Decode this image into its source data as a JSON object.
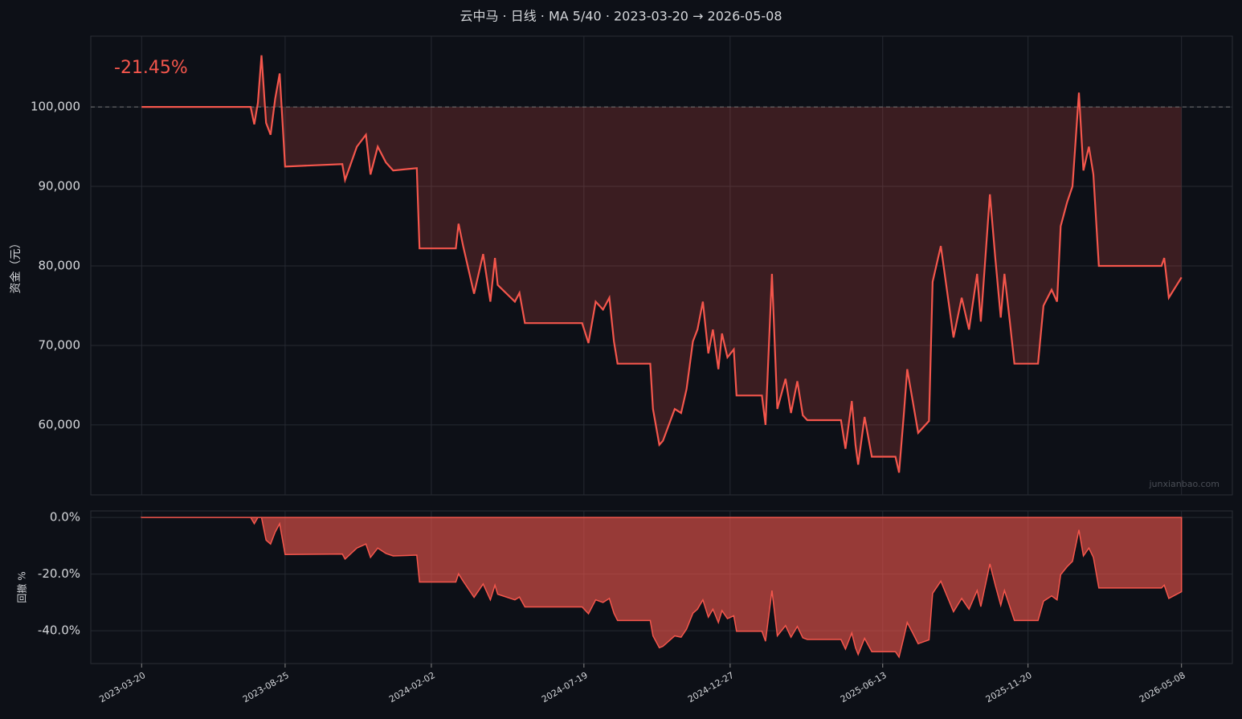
{
  "chart_data": [
    {
      "type": "line",
      "title": "云中马 · 日线 · MA 5/40 · 2023-03-20 → 2026-05-08",
      "annotation": "-21.45%",
      "watermark": "junxianbao.com",
      "y_label": "资金（元）",
      "color": "#f4564c",
      "reference_line": 100000,
      "xlim": [
        "2023-01-23",
        "2026-07-03"
      ],
      "xticks": [
        "2023-03-20",
        "2023-08-25",
        "2024-02-02",
        "2024-07-19",
        "2024-12-27",
        "2025-06-13",
        "2025-11-20",
        "2026-05-08"
      ],
      "ylim": [
        51200,
        108900
      ],
      "yticks": [
        {
          "value": 60000,
          "label": "60,000"
        },
        {
          "value": 70000,
          "label": "70,000"
        },
        {
          "value": 80000,
          "label": "80,000"
        },
        {
          "value": 90000,
          "label": "90,000"
        },
        {
          "value": 100000,
          "label": "100,000"
        }
      ],
      "grid": true,
      "x": [
        "2023-03-20",
        "2023-07-18",
        "2023-07-22",
        "2023-07-26",
        "2023-07-30",
        "2023-08-04",
        "2023-08-09",
        "2023-08-14",
        "2023-08-19",
        "2023-08-25",
        "2023-10-27",
        "2023-10-30",
        "2023-11-12",
        "2023-11-22",
        "2023-11-27",
        "2023-12-05",
        "2023-12-14",
        "2023-12-22",
        "2024-01-17",
        "2024-01-20",
        "2024-02-29",
        "2024-03-03",
        "2024-03-08",
        "2024-03-20",
        "2024-03-30",
        "2024-04-07",
        "2024-04-12",
        "2024-04-15",
        "2024-05-04",
        "2024-05-09",
        "2024-05-15",
        "2024-07-17",
        "2024-07-24",
        "2024-08-01",
        "2024-08-09",
        "2024-08-16",
        "2024-08-21",
        "2024-08-25",
        "2024-09-30",
        "2024-10-03",
        "2024-10-10",
        "2024-10-14",
        "2024-10-27",
        "2024-11-03",
        "2024-11-09",
        "2024-11-16",
        "2024-11-21",
        "2024-11-27",
        "2024-12-03",
        "2024-12-08",
        "2024-12-14",
        "2024-12-18",
        "2024-12-24",
        "2024-12-31",
        "2025-01-03",
        "2025-01-31",
        "2025-02-04",
        "2025-02-11",
        "2025-02-17",
        "2025-02-26",
        "2025-03-04",
        "2025-03-11",
        "2025-03-17",
        "2025-03-22",
        "2025-04-28",
        "2025-05-03",
        "2025-05-10",
        "2025-05-14",
        "2025-05-17",
        "2025-05-24",
        "2025-06-01",
        "2025-06-27",
        "2025-07-01",
        "2025-07-06",
        "2025-07-10",
        "2025-07-16",
        "2025-07-22",
        "2025-08-03",
        "2025-08-07",
        "2025-08-16",
        "2025-08-30",
        "2025-09-08",
        "2025-09-16",
        "2025-09-25",
        "2025-09-29",
        "2025-10-09",
        "2025-10-15",
        "2025-10-21",
        "2025-10-25",
        "2025-10-31",
        "2025-11-05",
        "2025-12-01",
        "2025-12-07",
        "2025-12-16",
        "2025-12-22",
        "2025-12-26",
        "2026-01-02",
        "2026-01-08",
        "2026-01-15",
        "2026-01-20",
        "2026-01-26",
        "2026-01-31",
        "2026-02-06",
        "2026-04-16",
        "2026-04-19",
        "2026-04-24",
        "2026-05-08"
      ],
      "values": [
        100000,
        100000,
        97800,
        100500,
        106500,
        98000,
        96500,
        101000,
        104200,
        92500,
        92800,
        90800,
        95000,
        96500,
        91500,
        95000,
        93000,
        92000,
        92300,
        82200,
        82200,
        85300,
        82500,
        76500,
        81500,
        75500,
        81000,
        77600,
        75500,
        76600,
        72800,
        72800,
        70300,
        75500,
        74500,
        76000,
        70500,
        67700,
        67700,
        62000,
        57500,
        58000,
        62000,
        61500,
        64500,
        70500,
        72000,
        75500,
        69000,
        72000,
        67000,
        71500,
        68500,
        69500,
        63700,
        63700,
        60000,
        79000,
        62000,
        65800,
        61500,
        65500,
        61200,
        60600,
        60600,
        57000,
        63000,
        57500,
        55000,
        61000,
        56000,
        56000,
        54000,
        61000,
        67000,
        63000,
        59000,
        60500,
        78000,
        82500,
        71000,
        76000,
        72000,
        79000,
        73000,
        89000,
        81000,
        73500,
        79000,
        73000,
        67700,
        67700,
        75000,
        77000,
        75500,
        85000,
        88000,
        90000,
        101800,
        92000,
        95000,
        91500,
        80000,
        80000,
        81000,
        76000,
        78550
      ]
    },
    {
      "type": "area",
      "y_label": "回撤 %",
      "color": "#f4564c",
      "xlim": [
        "2023-01-23",
        "2026-07-03"
      ],
      "xticks": [
        "2023-03-20",
        "2023-08-25",
        "2024-02-02",
        "2024-07-19",
        "2024-12-27",
        "2025-06-13",
        "2025-11-20",
        "2026-05-08"
      ],
      "ylim": [
        -51.6,
        2.3
      ],
      "yticks": [
        {
          "value": 0,
          "label": "0.0%"
        },
        {
          "value": -20,
          "label": "-20.0%"
        },
        {
          "value": -40,
          "label": "-40.0%"
        }
      ],
      "grid": true,
      "x": [
        "2023-03-20",
        "2023-07-18",
        "2023-07-22",
        "2023-07-26",
        "2023-07-30",
        "2023-08-04",
        "2023-08-09",
        "2023-08-14",
        "2023-08-19",
        "2023-08-25",
        "2023-10-27",
        "2023-10-30",
        "2023-11-12",
        "2023-11-22",
        "2023-11-27",
        "2023-12-05",
        "2023-12-14",
        "2023-12-22",
        "2024-01-17",
        "2024-01-20",
        "2024-02-29",
        "2024-03-03",
        "2024-03-08",
        "2024-03-20",
        "2024-03-30",
        "2024-04-07",
        "2024-04-12",
        "2024-04-15",
        "2024-05-04",
        "2024-05-09",
        "2024-05-15",
        "2024-07-17",
        "2024-07-24",
        "2024-08-01",
        "2024-08-09",
        "2024-08-16",
        "2024-08-21",
        "2024-08-25",
        "2024-09-30",
        "2024-10-03",
        "2024-10-10",
        "2024-10-14",
        "2024-10-27",
        "2024-11-03",
        "2024-11-09",
        "2024-11-16",
        "2024-11-21",
        "2024-11-27",
        "2024-12-03",
        "2024-12-08",
        "2024-12-14",
        "2024-12-18",
        "2024-12-24",
        "2024-12-31",
        "2025-01-03",
        "2025-01-31",
        "2025-02-04",
        "2025-02-11",
        "2025-02-17",
        "2025-02-26",
        "2025-03-04",
        "2025-03-11",
        "2025-03-17",
        "2025-03-22",
        "2025-04-28",
        "2025-05-03",
        "2025-05-10",
        "2025-05-14",
        "2025-05-17",
        "2025-05-24",
        "2025-06-01",
        "2025-06-27",
        "2025-07-01",
        "2025-07-06",
        "2025-07-10",
        "2025-07-16",
        "2025-07-22",
        "2025-08-03",
        "2025-08-07",
        "2025-08-16",
        "2025-08-30",
        "2025-09-08",
        "2025-09-16",
        "2025-09-25",
        "2025-09-29",
        "2025-10-09",
        "2025-10-15",
        "2025-10-21",
        "2025-10-25",
        "2025-10-31",
        "2025-11-05",
        "2025-12-01",
        "2025-12-07",
        "2025-12-16",
        "2025-12-22",
        "2025-12-26",
        "2026-01-02",
        "2026-01-08",
        "2026-01-15",
        "2026-01-20",
        "2026-01-26",
        "2026-01-31",
        "2026-02-06",
        "2026-04-16",
        "2026-04-19",
        "2026-04-24",
        "2026-05-08"
      ],
      "values": [
        0,
        0,
        -2.2,
        0,
        0,
        -8.0,
        -9.4,
        -5.2,
        -2.2,
        -13.1,
        -12.9,
        -14.7,
        -10.8,
        -9.4,
        -14.1,
        -10.8,
        -12.7,
        -13.6,
        -13.3,
        -22.8,
        -22.8,
        -19.9,
        -22.5,
        -28.2,
        -23.5,
        -29.1,
        -23.9,
        -27.1,
        -29.1,
        -28.1,
        -31.6,
        -31.6,
        -34.0,
        -29.1,
        -30.0,
        -28.6,
        -33.8,
        -36.4,
        -36.4,
        -41.8,
        -46.0,
        -45.5,
        -41.8,
        -42.3,
        -39.4,
        -33.8,
        -32.4,
        -29.1,
        -35.2,
        -32.4,
        -37.1,
        -32.9,
        -35.7,
        -34.7,
        -40.2,
        -40.2,
        -43.7,
        -25.8,
        -41.8,
        -38.2,
        -42.3,
        -38.5,
        -42.5,
        -43.1,
        -43.1,
        -46.5,
        -40.8,
        -46.0,
        -48.4,
        -42.7,
        -47.4,
        -47.4,
        -49.3,
        -42.7,
        -37.1,
        -40.8,
        -44.6,
        -43.2,
        -26.8,
        -22.5,
        -33.3,
        -28.6,
        -32.4,
        -25.8,
        -31.5,
        -16.4,
        -23.9,
        -31.0,
        -25.8,
        -31.5,
        -36.4,
        -36.4,
        -29.6,
        -27.7,
        -29.1,
        -20.2,
        -17.4,
        -15.5,
        -4.4,
        -13.6,
        -10.8,
        -14.1,
        -24.9,
        -24.9,
        -23.9,
        -28.6,
        -26.2
      ]
    }
  ]
}
